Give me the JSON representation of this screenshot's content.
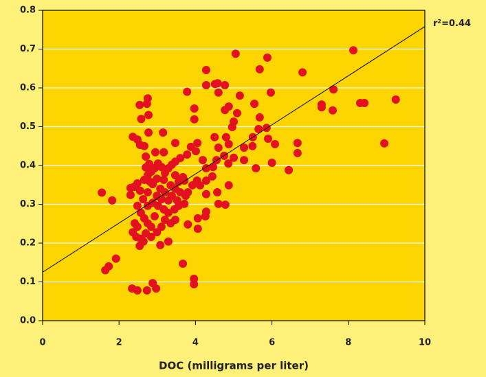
{
  "chart_data": {
    "type": "scatter",
    "x_label": "DOC (milligrams per liter)",
    "color": "#e3101f",
    "xlim": [
      0,
      10
    ],
    "xticks": [
      0,
      2,
      4,
      6,
      8,
      10
    ],
    "ylim": [
      0,
      0.8
    ],
    "yticks": [
      {
        "value": 0,
        "label": "0.0"
      },
      0.1,
      0.2,
      0.3,
      0.4,
      0.5,
      0.6,
      0.7,
      0.8
    ],
    "grid": true,
    "x": [
      1.55,
      1.82,
      1.64,
      1.73,
      1.92,
      2.34,
      2.48,
      2.73,
      2.88,
      2.97,
      3.67,
      3.96,
      3.96,
      2.54,
      2.75,
      2.73,
      2.77,
      2.77,
      2.58,
      2.36,
      2.48,
      3.78,
      4.28,
      4.28,
      4.51,
      4.58,
      4.77,
      4.6,
      5.05,
      5.88,
      5.68,
      5.97,
      5.16,
      5.54,
      6.8,
      7.61,
      8.13,
      7.3,
      7.3,
      7.59,
      8.31,
      8.42,
      9.24,
      8.94,
      6.67,
      6.67,
      6.44,
      6.0,
      6.08,
      5.58,
      5.86,
      5.9,
      5.65,
      5.68,
      5.5,
      5.49,
      5.27,
      5.27,
      5.0,
      4.87,
      4.78,
      4.6,
      4.57,
      4.28,
      4.28,
      4.06,
      4.06,
      4.26,
      4.04,
      3.8,
      3.45,
      3.29,
      3.08,
      4.44,
      4.55,
      4.75,
      4.86,
      4.8,
      4.87,
      4.6,
      4.5,
      5.09,
      5.0,
      4.96,
      4.77,
      4.87,
      3.97,
      3.97,
      3.88,
      3.78,
      4.05,
      4.01,
      4.19,
      4.28,
      4.46,
      4.28,
      4.12,
      3.92,
      3.74,
      3.8,
      3.71,
      3.67,
      2.95,
      3.15,
      3.17,
      3.47,
      3.6,
      3.47,
      2.7,
      2.7,
      2.81,
      2.79,
      2.55,
      2.66,
      2.3,
      2.3,
      2.39,
      2.48,
      2.55,
      2.66,
      2.75,
      2.84,
      2.93,
      3.02,
      3.11,
      3.2,
      3.29,
      3.38,
      3.47,
      3.56,
      3.35,
      3.17,
      2.99,
      2.88,
      2.75,
      2.63,
      2.48,
      2.57,
      2.66,
      2.75,
      2.84,
      2.93,
      3.02,
      3.11,
      3.2,
      3.29,
      3.38,
      3.47,
      3.29,
      3.2,
      3.11,
      2.99,
      2.84,
      2.7,
      2.57,
      2.45,
      2.36,
      2.41,
      2.48,
      2.54,
      2.64,
      2.75,
      2.88,
      2.99,
      3.08,
      3.17,
      3.35,
      3.47,
      3.56,
      3.6,
      3.52,
      3.71
    ],
    "values": [
      0.33,
      0.31,
      0.13,
      0.14,
      0.16,
      0.083,
      0.078,
      0.078,
      0.097,
      0.083,
      0.147,
      0.108,
      0.094,
      0.556,
      0.573,
      0.559,
      0.485,
      0.53,
      0.52,
      0.474,
      0.467,
      0.59,
      0.646,
      0.607,
      0.61,
      0.612,
      0.607,
      0.588,
      0.688,
      0.678,
      0.648,
      0.588,
      0.58,
      0.559,
      0.64,
      0.596,
      0.697,
      0.557,
      0.55,
      0.542,
      0.561,
      0.561,
      0.57,
      0.457,
      0.458,
      0.432,
      0.388,
      0.407,
      0.455,
      0.393,
      0.497,
      0.469,
      0.494,
      0.524,
      0.473,
      0.45,
      0.446,
      0.414,
      0.42,
      0.349,
      0.299,
      0.301,
      0.331,
      0.326,
      0.281,
      0.264,
      0.237,
      0.269,
      0.361,
      0.248,
      0.287,
      0.204,
      0.195,
      0.372,
      0.414,
      0.425,
      0.405,
      0.473,
      0.455,
      0.446,
      0.473,
      0.535,
      0.513,
      0.499,
      0.543,
      0.552,
      0.519,
      0.547,
      0.448,
      0.428,
      0.458,
      0.437,
      0.414,
      0.393,
      0.396,
      0.361,
      0.349,
      0.349,
      0.322,
      0.331,
      0.301,
      0.37,
      0.434,
      0.485,
      0.434,
      0.458,
      0.419,
      0.41,
      0.395,
      0.423,
      0.358,
      0.404,
      0.453,
      0.45,
      0.342,
      0.324,
      0.345,
      0.354,
      0.335,
      0.363,
      0.375,
      0.384,
      0.393,
      0.405,
      0.396,
      0.381,
      0.393,
      0.402,
      0.375,
      0.358,
      0.349,
      0.363,
      0.366,
      0.352,
      0.331,
      0.313,
      0.296,
      0.278,
      0.264,
      0.251,
      0.242,
      0.269,
      0.296,
      0.313,
      0.331,
      0.31,
      0.322,
      0.34,
      0.278,
      0.26,
      0.242,
      0.228,
      0.216,
      0.225,
      0.211,
      0.216,
      0.228,
      0.251,
      0.242,
      0.193,
      0.204,
      0.296,
      0.304,
      0.322,
      0.34,
      0.287,
      0.251,
      0.26,
      0.296,
      0.331,
      0.31,
      0.361
    ],
    "trend_line": {
      "x": [
        0,
        10
      ],
      "y": [
        0.125,
        0.758
      ],
      "label": "r²=0.44"
    }
  }
}
